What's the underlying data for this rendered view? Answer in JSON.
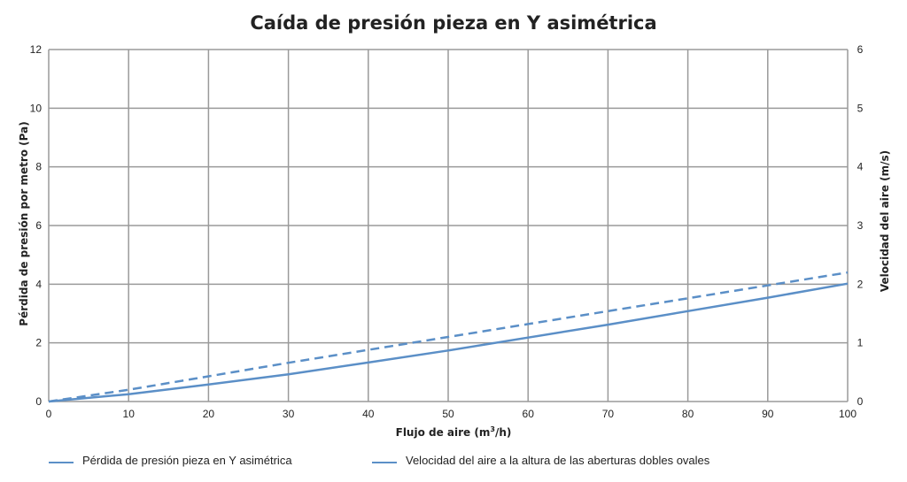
{
  "chart_data": {
    "type": "line",
    "title": "Caída de presión pieza en Y asimétrica",
    "xlabel": "Flujo de aire (m³/h)",
    "xlabel_base": "Flujo de aire (m",
    "xlabel_sup": "3",
    "xlabel_tail": "/h)",
    "ylabel_left": "Pérdida de presión por metro (Pa)",
    "ylabel_right": "Velocidad del aire (m/s)",
    "xlim": [
      0,
      100
    ],
    "ylim_left": [
      0,
      12
    ],
    "ylim_right": [
      0,
      6
    ],
    "x_ticks": [
      "0",
      "10",
      "20",
      "30",
      "40",
      "50",
      "60",
      "70",
      "80",
      "90",
      "100"
    ],
    "y_left_ticks": [
      "0",
      "2",
      "4",
      "6",
      "8",
      "10",
      "12"
    ],
    "y_right_ticks": [
      "0",
      "1",
      "2",
      "3",
      "4",
      "5",
      "6"
    ],
    "grid": true,
    "legend_position": "bottom",
    "series": [
      {
        "name": "Pérdida de presión pieza en Y asimétrica",
        "axis": "left",
        "style": "solid",
        "color": "#5b8fc7",
        "x": [
          0,
          10,
          20,
          30,
          40,
          50,
          60,
          70,
          80,
          90,
          100
        ],
        "y": [
          0,
          0.25,
          0.58,
          0.93,
          1.33,
          1.74,
          2.18,
          2.62,
          3.08,
          3.54,
          4.02
        ]
      },
      {
        "name": "Velocidad del aire a la altura de las aberturas dobles ovales",
        "axis": "right",
        "style": "dashed",
        "color": "#5b8fc7",
        "x": [
          0,
          10,
          20,
          30,
          40,
          50,
          60,
          70,
          80,
          90,
          100
        ],
        "y": [
          0,
          0.2,
          0.43,
          0.66,
          0.88,
          1.1,
          1.32,
          1.54,
          1.76,
          1.98,
          2.2
        ]
      }
    ]
  }
}
